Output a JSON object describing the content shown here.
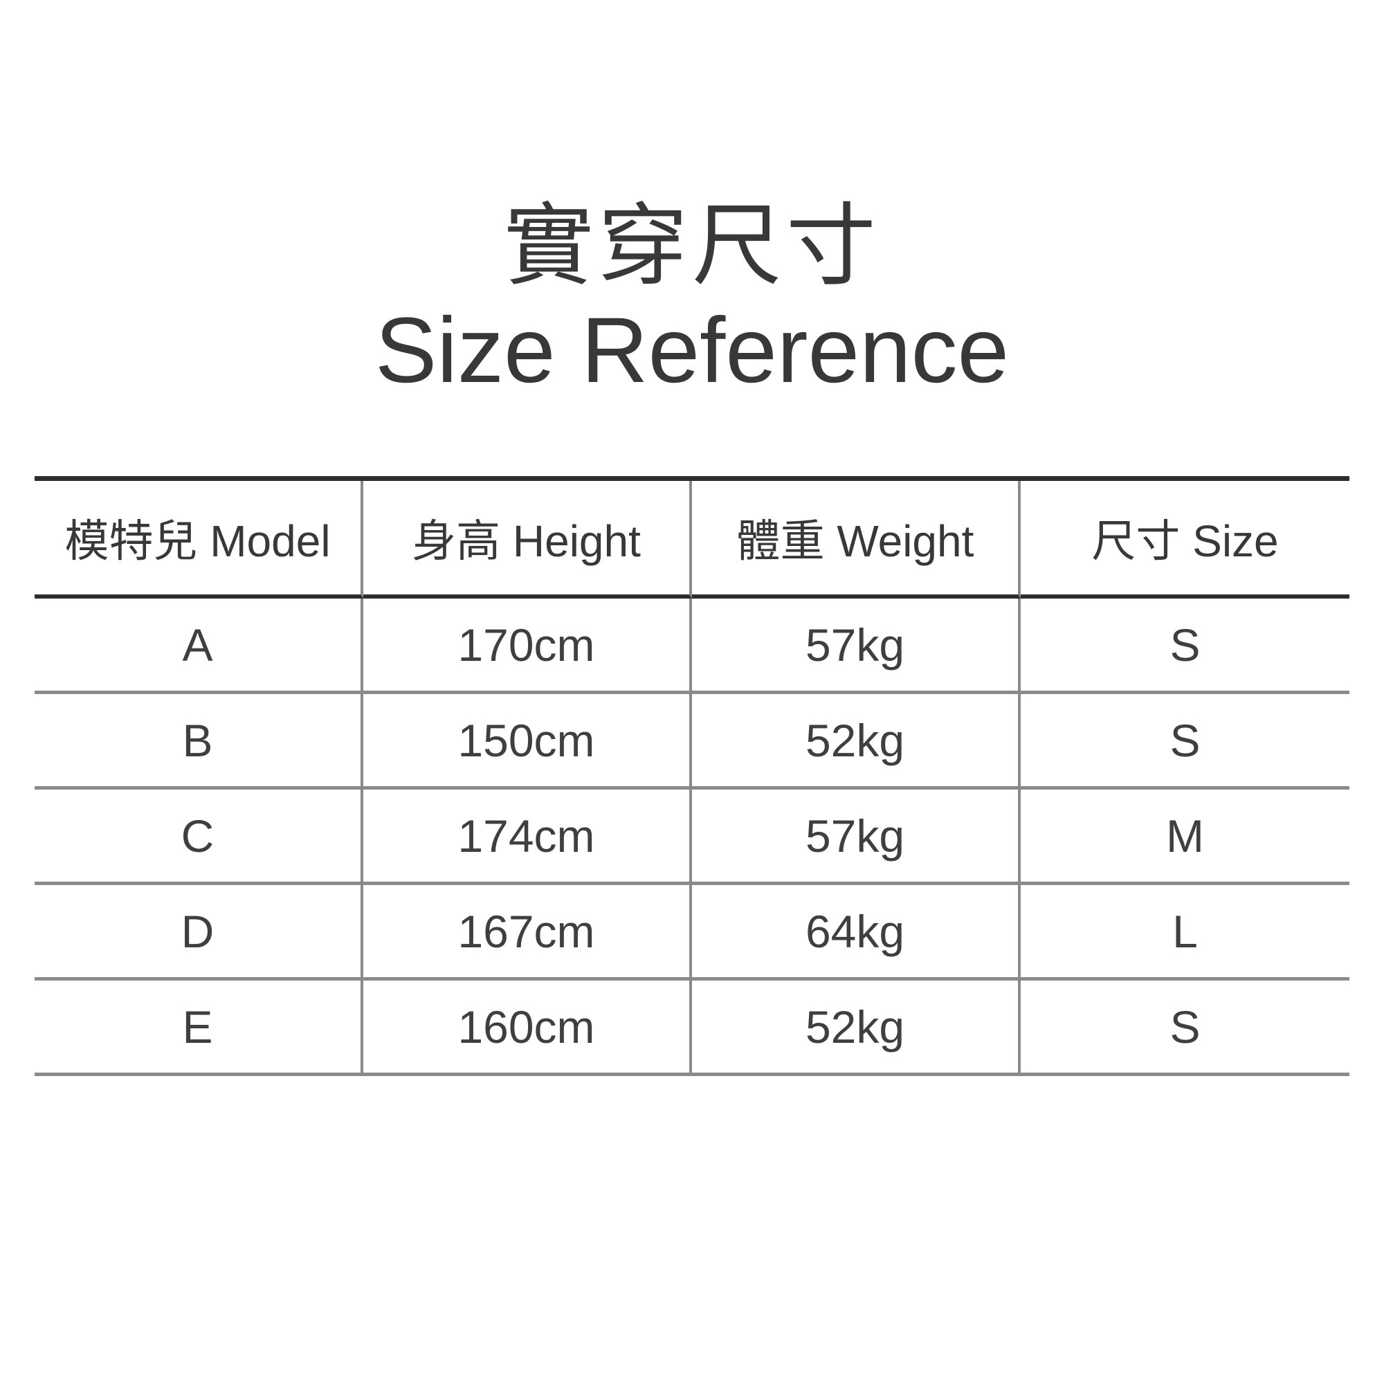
{
  "title": {
    "line1": "實穿尺寸",
    "line2": "Size Reference"
  },
  "chart_data": {
    "type": "table",
    "title": "實穿尺寸 Size Reference",
    "columns": [
      "模特兒 Model",
      "身高 Height",
      "體重 Weight",
      "尺寸 Size"
    ],
    "rows": [
      [
        "A",
        "170cm",
        "57kg",
        "S"
      ],
      [
        "B",
        "150cm",
        "52kg",
        "S"
      ],
      [
        "C",
        "174cm",
        "57kg",
        "M"
      ],
      [
        "D",
        "167cm",
        "64kg",
        "L"
      ],
      [
        "E",
        "160cm",
        "52kg",
        "S"
      ]
    ]
  },
  "colors": {
    "background": "#ffffff",
    "text": "#383838",
    "line_dark": "#2d2d2d",
    "line_gray": "#8a8a8a"
  }
}
